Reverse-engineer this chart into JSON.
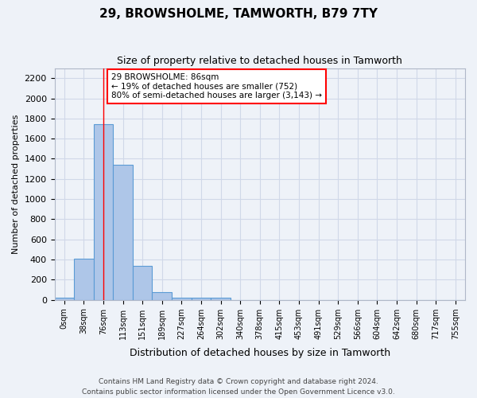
{
  "title": "29, BROWSHOLME, TAMWORTH, B79 7TY",
  "subtitle": "Size of property relative to detached houses in Tamworth",
  "xlabel": "Distribution of detached houses by size in Tamworth",
  "ylabel": "Number of detached properties",
  "footer_line1": "Contains HM Land Registry data © Crown copyright and database right 2024.",
  "footer_line2": "Contains public sector information licensed under the Open Government Licence v3.0.",
  "bin_labels": [
    "0sqm",
    "38sqm",
    "76sqm",
    "113sqm",
    "151sqm",
    "189sqm",
    "227sqm",
    "264sqm",
    "302sqm",
    "340sqm",
    "378sqm",
    "415sqm",
    "453sqm",
    "491sqm",
    "529sqm",
    "566sqm",
    "604sqm",
    "642sqm",
    "680sqm",
    "717sqm",
    "755sqm"
  ],
  "bar_heights": [
    20,
    410,
    1740,
    1340,
    340,
    80,
    25,
    20,
    20,
    0,
    0,
    0,
    0,
    0,
    0,
    0,
    0,
    0,
    0,
    0,
    0
  ],
  "bar_color": "#aec6e8",
  "bar_edge_color": "#5b9bd5",
  "ylim": [
    0,
    2300
  ],
  "yticks": [
    0,
    200,
    400,
    600,
    800,
    1000,
    1200,
    1400,
    1600,
    1800,
    2000,
    2200
  ],
  "red_line_bin_index": 2,
  "annotation_text": "29 BROWSHOLME: 86sqm\n← 19% of detached houses are smaller (752)\n80% of semi-detached houses are larger (3,143) →",
  "annotation_box_color": "white",
  "annotation_box_edge_color": "red",
  "grid_color": "#d0d8e8",
  "background_color": "#eef2f8"
}
